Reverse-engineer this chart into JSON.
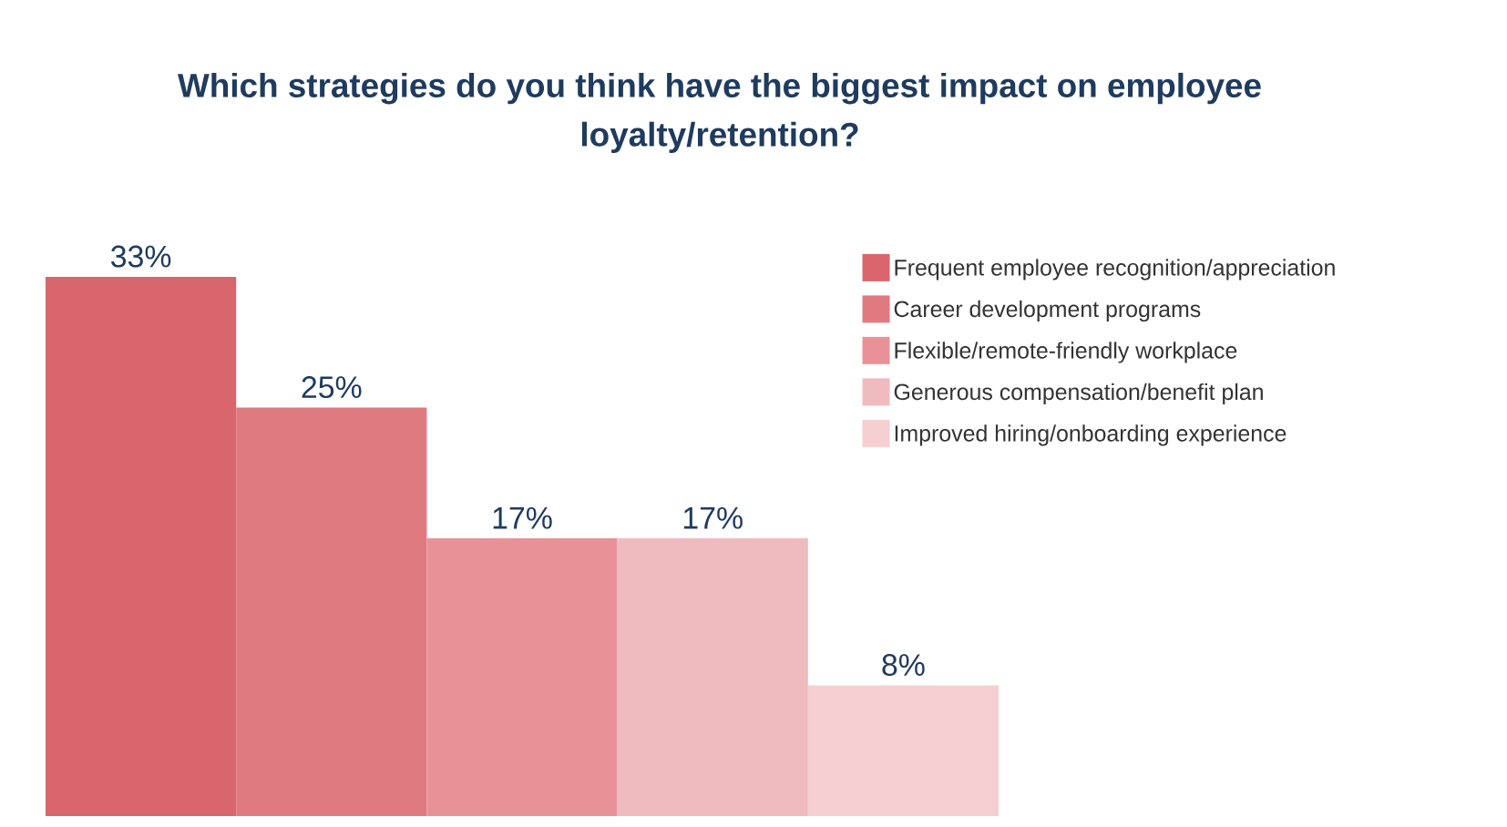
{
  "chart_data": {
    "type": "bar",
    "title": "Which strategies do you think have the biggest impact on employee loyalty/retention?",
    "categories": [
      null,
      null,
      null,
      null,
      null
    ],
    "series": [
      {
        "name": "Frequent employee recognition/appreciation",
        "color": "#d9656d",
        "values": [
          33,
          null,
          null,
          null,
          null
        ],
        "value_labels": [
          "33%",
          null,
          null,
          null,
          null
        ]
      },
      {
        "name": "Career development programs",
        "color": "#df7a81",
        "values": [
          null,
          25,
          null,
          null,
          null
        ],
        "value_labels": [
          null,
          "25%",
          null,
          null,
          null
        ]
      },
      {
        "name": "Flexible/remote-friendly workplace",
        "color": "#e89297",
        "values": [
          null,
          null,
          17,
          null,
          null
        ],
        "value_labels": [
          null,
          null,
          "17%",
          null,
          null
        ]
      },
      {
        "name": "Generous compensation/benefit plan",
        "color": "#f0bbbe",
        "values": [
          null,
          null,
          null,
          17,
          null
        ],
        "value_labels": [
          null,
          null,
          null,
          "17%",
          null
        ]
      },
      {
        "name": "Improved hiring/onboarding experience",
        "color": "#f5cfd1",
        "values": [
          null,
          null,
          null,
          null,
          8
        ],
        "value_labels": [
          null,
          null,
          null,
          null,
          "8%"
        ]
      }
    ],
    "stacked": true,
    "legend": "right"
  }
}
